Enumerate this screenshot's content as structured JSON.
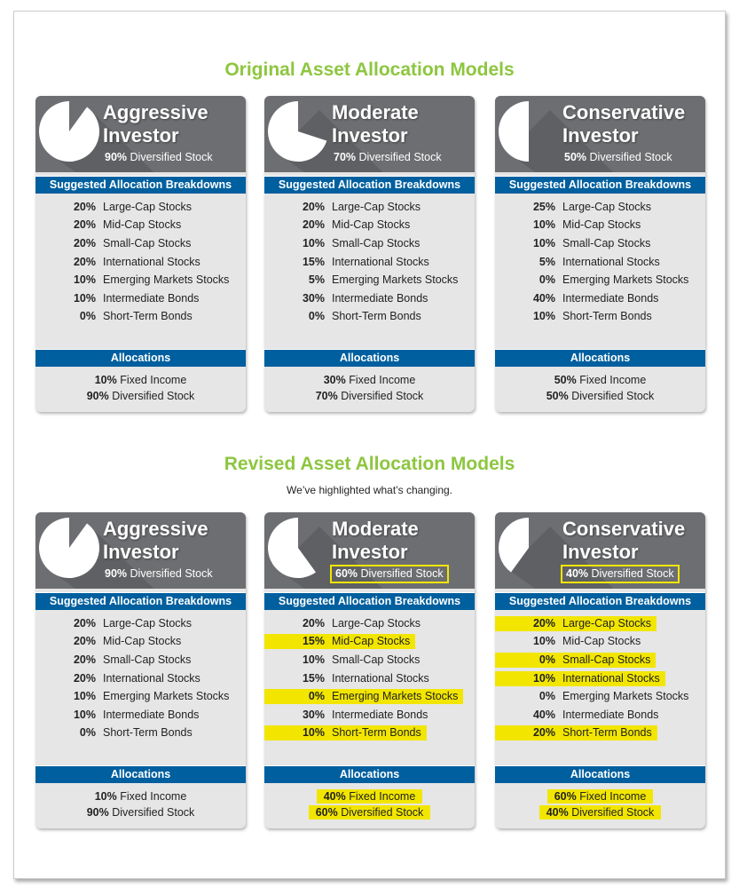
{
  "colors": {
    "title": "#8dc63f",
    "header": "#6d6e71",
    "bar": "#005f9e",
    "highlight": "#f2e600"
  },
  "sections": [
    {
      "title": "Original Asset Allocation Models",
      "subtitle": "",
      "cards": [
        {
          "name1": "Aggressive",
          "name2": "Investor",
          "stock_pct": "90%",
          "stock_label": "Diversified Stock",
          "stock_fraction": 0.9,
          "sub_hl": false,
          "breakdown_label": "Suggested Allocation Breakdowns",
          "rows": [
            {
              "pct": "20%",
              "label": "Large-Cap Stocks",
              "hl": false
            },
            {
              "pct": "20%",
              "label": "Mid-Cap Stocks",
              "hl": false
            },
            {
              "pct": "20%",
              "label": "Small-Cap Stocks",
              "hl": false
            },
            {
              "pct": "20%",
              "label": "International Stocks",
              "hl": false
            },
            {
              "pct": "10%",
              "label": "Emerging Markets Stocks",
              "hl": false
            },
            {
              "pct": "10%",
              "label": "Intermediate Bonds",
              "hl": false
            },
            {
              "pct": "0%",
              "label": "Short-Term Bonds",
              "hl": false
            }
          ],
          "alloc_label": "Allocations",
          "allocs": [
            {
              "pct": "10%",
              "label": "Fixed Income",
              "hl": false
            },
            {
              "pct": "90%",
              "label": "Diversified Stock",
              "hl": false
            }
          ]
        },
        {
          "name1": "Moderate",
          "name2": "Investor",
          "stock_pct": "70%",
          "stock_label": "Diversified Stock",
          "stock_fraction": 0.7,
          "sub_hl": false,
          "breakdown_label": "Suggested Allocation Breakdowns",
          "rows": [
            {
              "pct": "20%",
              "label": "Large-Cap Stocks",
              "hl": false
            },
            {
              "pct": "20%",
              "label": "Mid-Cap Stocks",
              "hl": false
            },
            {
              "pct": "10%",
              "label": "Small-Cap Stocks",
              "hl": false
            },
            {
              "pct": "15%",
              "label": "International Stocks",
              "hl": false
            },
            {
              "pct": "5%",
              "label": "Emerging Markets Stocks",
              "hl": false
            },
            {
              "pct": "30%",
              "label": "Intermediate Bonds",
              "hl": false
            },
            {
              "pct": "0%",
              "label": "Short-Term Bonds",
              "hl": false
            }
          ],
          "alloc_label": "Allocations",
          "allocs": [
            {
              "pct": "30%",
              "label": "Fixed Income",
              "hl": false
            },
            {
              "pct": "70%",
              "label": "Diversified Stock",
              "hl": false
            }
          ]
        },
        {
          "name1": "Conservative",
          "name2": "Investor",
          "stock_pct": "50%",
          "stock_label": "Diversified Stock",
          "stock_fraction": 0.5,
          "sub_hl": false,
          "breakdown_label": "Suggested Allocation Breakdowns",
          "rows": [
            {
              "pct": "25%",
              "label": "Large-Cap Stocks",
              "hl": false
            },
            {
              "pct": "10%",
              "label": "Mid-Cap Stocks",
              "hl": false
            },
            {
              "pct": "10%",
              "label": "Small-Cap Stocks",
              "hl": false
            },
            {
              "pct": "5%",
              "label": "International Stocks",
              "hl": false
            },
            {
              "pct": "0%",
              "label": "Emerging Markets Stocks",
              "hl": false
            },
            {
              "pct": "40%",
              "label": "Intermediate Bonds",
              "hl": false
            },
            {
              "pct": "10%",
              "label": "Short-Term Bonds",
              "hl": false
            }
          ],
          "alloc_label": "Allocations",
          "allocs": [
            {
              "pct": "50%",
              "label": "Fixed Income",
              "hl": false
            },
            {
              "pct": "50%",
              "label": "Diversified Stock",
              "hl": false
            }
          ]
        }
      ]
    },
    {
      "title": "Revised Asset Allocation Models",
      "subtitle": "We’ve highlighted what’s changing.",
      "cards": [
        {
          "name1": "Aggressive",
          "name2": "Investor",
          "stock_pct": "90%",
          "stock_label": "Diversified Stock",
          "stock_fraction": 0.9,
          "sub_hl": false,
          "breakdown_label": "Suggested Allocation Breakdowns",
          "rows": [
            {
              "pct": "20%",
              "label": "Large-Cap Stocks",
              "hl": false
            },
            {
              "pct": "20%",
              "label": "Mid-Cap Stocks",
              "hl": false
            },
            {
              "pct": "20%",
              "label": "Small-Cap Stocks",
              "hl": false
            },
            {
              "pct": "20%",
              "label": "International Stocks",
              "hl": false
            },
            {
              "pct": "10%",
              "label": "Emerging Markets Stocks",
              "hl": false
            },
            {
              "pct": "10%",
              "label": "Intermediate Bonds",
              "hl": false
            },
            {
              "pct": "0%",
              "label": "Short-Term Bonds",
              "hl": false
            }
          ],
          "alloc_label": "Allocations",
          "allocs": [
            {
              "pct": "10%",
              "label": "Fixed Income",
              "hl": false
            },
            {
              "pct": "90%",
              "label": "Diversified Stock",
              "hl": false
            }
          ]
        },
        {
          "name1": "Moderate",
          "name2": "Investor",
          "stock_pct": "60%",
          "stock_label": "Diversified Stock",
          "stock_fraction": 0.6,
          "sub_hl": true,
          "breakdown_label": "Suggested Allocation Breakdowns",
          "rows": [
            {
              "pct": "20%",
              "label": "Large-Cap Stocks",
              "hl": false
            },
            {
              "pct": "15%",
              "label": "Mid-Cap Stocks",
              "hl": true
            },
            {
              "pct": "10%",
              "label": "Small-Cap Stocks",
              "hl": false
            },
            {
              "pct": "15%",
              "label": "International Stocks",
              "hl": false
            },
            {
              "pct": "0%",
              "label": "Emerging Markets Stocks",
              "hl": true
            },
            {
              "pct": "30%",
              "label": "Intermediate Bonds",
              "hl": false
            },
            {
              "pct": "10%",
              "label": "Short-Term Bonds",
              "hl": true
            }
          ],
          "alloc_label": "Allocations",
          "allocs": [
            {
              "pct": "40%",
              "label": "Fixed Income",
              "hl": true
            },
            {
              "pct": "60%",
              "label": "Diversified Stock",
              "hl": true
            }
          ]
        },
        {
          "name1": "Conservative",
          "name2": "Investor",
          "stock_pct": "40%",
          "stock_label": "Diversified Stock",
          "stock_fraction": 0.4,
          "sub_hl": true,
          "breakdown_label": "Suggested Allocation Breakdowns",
          "rows": [
            {
              "pct": "20%",
              "label": "Large-Cap Stocks",
              "hl": true
            },
            {
              "pct": "10%",
              "label": "Mid-Cap Stocks",
              "hl": false
            },
            {
              "pct": "0%",
              "label": "Small-Cap Stocks",
              "hl": true
            },
            {
              "pct": "10%",
              "label": "International Stocks",
              "hl": true
            },
            {
              "pct": "0%",
              "label": "Emerging Markets Stocks",
              "hl": false
            },
            {
              "pct": "40%",
              "label": "Intermediate Bonds",
              "hl": false
            },
            {
              "pct": "20%",
              "label": "Short-Term Bonds",
              "hl": true
            }
          ],
          "alloc_label": "Allocations",
          "allocs": [
            {
              "pct": "60%",
              "label": "Fixed Income",
              "hl": true
            },
            {
              "pct": "40%",
              "label": "Diversified Stock",
              "hl": true
            }
          ]
        }
      ]
    }
  ]
}
